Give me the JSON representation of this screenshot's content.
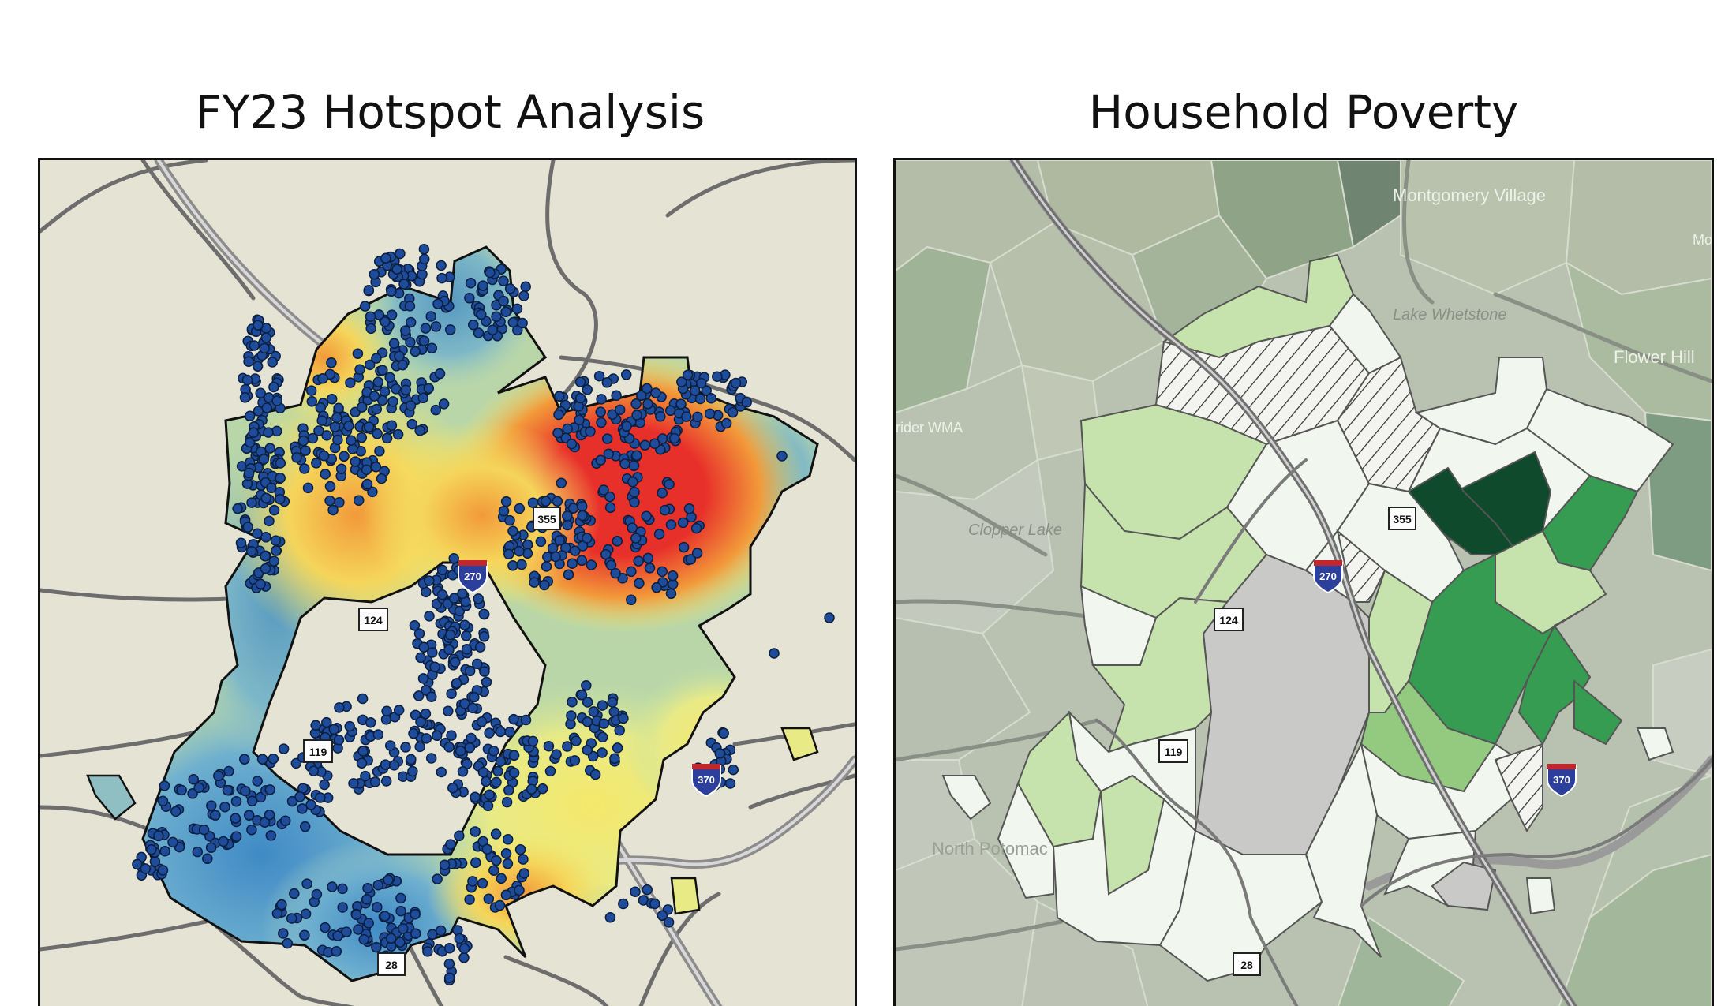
{
  "left_panel": {
    "title": "FY23 Hotspot Analysis",
    "route_labels": {
      "r355": "355",
      "i270": "270",
      "r124": "124",
      "r119": "119",
      "i370": "370",
      "r28": "28"
    },
    "colors": {
      "background": "#e5e3d4",
      "hot": "#e8302a",
      "warm": "#f29a3a",
      "mid": "#f5e86a",
      "cool": "#a7cfa3",
      "cold": "#4f97c8",
      "points": "#1f4c9a",
      "roads": "#6d6d6d",
      "interstate": "#b3b3b3"
    }
  },
  "right_panel": {
    "title": "Household Poverty",
    "route_labels": {
      "r355": "355",
      "i270": "270",
      "r124": "124",
      "r119": "119",
      "i370": "370",
      "r28": "28"
    },
    "place_labels": {
      "montgomery_village": "Montgomery Village",
      "lake_whetstone": "Lake Whetstone",
      "flower_hill": "Flower Hill",
      "clopper_lake": "Clopper Lake",
      "north_potomac": "North Potomac",
      "seneca_wma": "rider WMA",
      "mo_edge": "Mo"
    },
    "colors": {
      "background": "#b9c2b0",
      "lowest": "#f1f6ee",
      "low": "#c6e3ad",
      "medium": "#93ca80",
      "high": "#359c52",
      "highest": "#0e4a2b",
      "no_data": "#c9c9c7",
      "hatch": "#333333"
    }
  }
}
